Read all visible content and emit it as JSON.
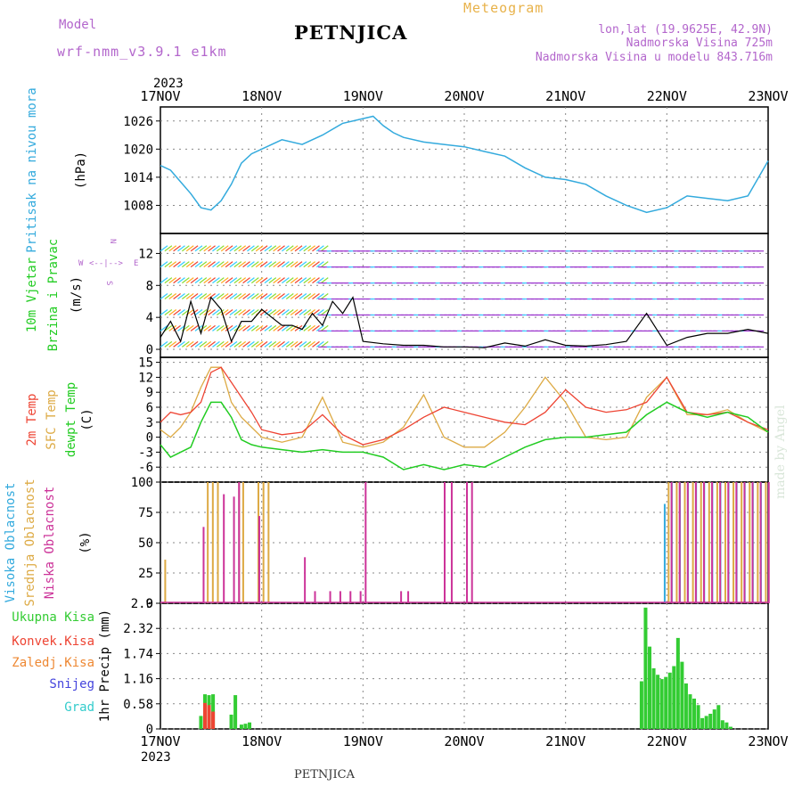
{
  "header": {
    "model_label": "Model",
    "model_name": "wrf-nmm_v3.9.1  e1km",
    "station": "PETNJICA",
    "title": "Meteogram",
    "coords": "lon,lat (19.9625E, 42.9N)",
    "elevation": "Nadmorska Visina 725m",
    "model_elevation": "Nadmorska Visina u modelu 843.716m",
    "year_top": "2023",
    "year_bottom": "2023",
    "footer_station": "PETNJICA",
    "watermark": "made by Angel"
  },
  "colors": {
    "pressure": "#33aadd",
    "temp2m": "#ee4433",
    "sfc": "#ddaa44",
    "dewpt": "#22cc22",
    "cloud_high": "#33aadd",
    "cloud_mid": "#ddaa44",
    "cloud_low": "#cc3399",
    "precip_total": "#33cc33",
    "precip_conv": "#ee4433",
    "precip_strat": "#ee8833",
    "snow": "#4444dd",
    "hail": "#33cccc",
    "wind_speed": "#000000",
    "gust": "#ff3333",
    "axis_purple": "#b366cc"
  },
  "chart_data": [
    {
      "type": "line",
      "id": "pressure",
      "ylabel_lines": [
        "Pritisak na nivou mora"
      ],
      "unit": "(hPa)",
      "x_categories": [
        "17NOV",
        "18NOV",
        "19NOV",
        "20NOV",
        "21NOV",
        "22NOV",
        "23NOV"
      ],
      "ylim": [
        1002,
        1029
      ],
      "yticks": [
        1008,
        1014,
        1020,
        1026
      ],
      "grid": true,
      "series": [
        {
          "x": [
            0,
            0.1,
            0.2,
            0.3,
            0.4,
            0.5,
            0.6,
            0.7,
            0.8,
            0.9,
            1.0,
            1.2,
            1.4,
            1.6,
            1.8,
            2.0,
            2.1,
            2.2,
            2.3,
            2.4,
            2.6,
            2.8,
            3.0,
            3.2,
            3.4,
            3.6,
            3.8,
            4.0,
            4.2,
            4.4,
            4.6,
            4.8,
            5.0,
            5.2,
            5.4,
            5.6,
            5.8,
            6.0
          ],
          "y": [
            1016.5,
            1015.5,
            1013,
            1010.5,
            1007.5,
            1007,
            1009,
            1012.5,
            1017,
            1019,
            1020,
            1022,
            1021,
            1023,
            1025.5,
            1026.5,
            1027,
            1025,
            1023.5,
            1022.5,
            1021.5,
            1021,
            1020.5,
            1019.5,
            1018.5,
            1016,
            1014,
            1013.5,
            1012.5,
            1010,
            1008,
            1006.5,
            1007.5,
            1010,
            1009.5,
            1009,
            1010,
            1017.5
          ]
        }
      ]
    },
    {
      "type": "line",
      "id": "wind",
      "ylabel_lines": [
        "10m Vjetar",
        "Brzina i Pravac"
      ],
      "unit": "(m/s)",
      "ylim": [
        -1,
        14.5
      ],
      "yticks": [
        0,
        4,
        8,
        12
      ],
      "compass": {
        "n": "N",
        "s": "S",
        "e": "E",
        "w": "W"
      },
      "grid": true,
      "series": [
        {
          "name": "speed",
          "x": [
            0,
            0.1,
            0.2,
            0.3,
            0.4,
            0.5,
            0.6,
            0.7,
            0.8,
            0.9,
            1.0,
            1.1,
            1.2,
            1.3,
            1.4,
            1.5,
            1.6,
            1.7,
            1.8,
            1.9,
            2.0,
            2.2,
            2.4,
            2.6,
            2.8,
            3.0,
            3.2,
            3.4,
            3.6,
            3.8,
            4.0,
            4.2,
            4.4,
            4.6,
            4.8,
            5.0,
            5.2,
            5.4,
            5.6,
            5.8,
            6.0
          ],
          "y": [
            1.5,
            3.5,
            1,
            6,
            2,
            6.5,
            5,
            1,
            3.5,
            3.5,
            5,
            4,
            3,
            3,
            2.5,
            4.5,
            3,
            6,
            4.5,
            6.5,
            1,
            0.7,
            0.5,
            0.5,
            0.3,
            0.3,
            0.2,
            0.8,
            0.4,
            1.2,
            0.5,
            0.4,
            0.6,
            1,
            4.5,
            0.5,
            1.5,
            2,
            2,
            2.5,
            2
          ]
        }
      ]
    },
    {
      "type": "line",
      "id": "temperature",
      "ylabel_lines": [
        "2m Temp",
        "SFC Temp",
        "dewpt Temp"
      ],
      "unit": "(C)",
      "ylim": [
        -9,
        16
      ],
      "yticks": [
        -6,
        -3,
        0,
        3,
        6,
        9,
        12,
        15
      ],
      "grid": true,
      "series": [
        {
          "name": "2m Temp",
          "x": [
            0,
            0.1,
            0.2,
            0.3,
            0.4,
            0.5,
            0.6,
            0.7,
            0.8,
            0.9,
            1.0,
            1.2,
            1.4,
            1.6,
            1.8,
            2.0,
            2.2,
            2.4,
            2.6,
            2.8,
            3.0,
            3.2,
            3.4,
            3.6,
            3.8,
            4.0,
            4.2,
            4.4,
            4.6,
            4.8,
            5.0,
            5.2,
            5.4,
            5.6,
            5.8,
            6.0
          ],
          "y": [
            3,
            5,
            4.5,
            5,
            7,
            13,
            14,
            11,
            8,
            5,
            1.5,
            0.5,
            1,
            4.5,
            0.5,
            -1.5,
            -0.5,
            1.5,
            4,
            6,
            5,
            4,
            3,
            2.5,
            5,
            9.5,
            6,
            5,
            5.5,
            7,
            12,
            5,
            4.5,
            5,
            3,
            1.5
          ]
        },
        {
          "name": "SFC Temp",
          "x": [
            0,
            0.1,
            0.2,
            0.3,
            0.4,
            0.5,
            0.6,
            0.7,
            0.8,
            0.9,
            1.0,
            1.2,
            1.4,
            1.6,
            1.8,
            2.0,
            2.2,
            2.4,
            2.6,
            2.8,
            3.0,
            3.2,
            3.4,
            3.6,
            3.8,
            4.0,
            4.2,
            4.4,
            4.6,
            4.8,
            5.0,
            5.2,
            5.4,
            5.6,
            5.8,
            6.0
          ],
          "y": [
            1.5,
            0,
            2,
            5,
            10,
            14,
            14,
            7,
            4,
            2,
            0,
            -1,
            0,
            8,
            -1,
            -2,
            -1,
            2,
            8.5,
            0,
            -2,
            -2,
            1,
            6,
            12,
            7,
            0,
            -0.5,
            0,
            8,
            12,
            4.5,
            4.5,
            5.5,
            3,
            1
          ]
        },
        {
          "name": "dewpt Temp",
          "x": [
            0,
            0.1,
            0.2,
            0.3,
            0.4,
            0.5,
            0.6,
            0.7,
            0.8,
            0.9,
            1.0,
            1.2,
            1.4,
            1.6,
            1.8,
            2.0,
            2.2,
            2.4,
            2.6,
            2.8,
            3.0,
            3.2,
            3.4,
            3.6,
            3.8,
            4.0,
            4.2,
            4.4,
            4.6,
            4.8,
            5.0,
            5.2,
            5.4,
            5.6,
            5.8,
            6.0
          ],
          "y": [
            -1.5,
            -4,
            -3,
            -2,
            3,
            7,
            7,
            4,
            -0.5,
            -1.5,
            -2,
            -2.5,
            -3,
            -2.5,
            -3,
            -3,
            -4,
            -6.5,
            -5.5,
            -6.5,
            -5.5,
            -6,
            -4,
            -2,
            -0.5,
            0,
            0,
            0.5,
            1,
            4.5,
            7,
            5,
            4,
            5,
            4,
            1
          ]
        }
      ]
    },
    {
      "type": "bar",
      "id": "clouds",
      "ylabel_lines": [
        "Visoka Oblacnost",
        "Srednja Oblacnost",
        "Niska Oblacnost"
      ],
      "unit": "(%)",
      "ylim": [
        0,
        100
      ],
      "yticks": [
        0,
        25,
        50,
        75,
        100
      ],
      "grid": true,
      "series": [
        {
          "name": "Visoka Oblacnost",
          "x": [
            4.97,
            5.04,
            5.12,
            5.2,
            5.28,
            5.36,
            5.44,
            5.52,
            5.6,
            5.68,
            5.76,
            5.84,
            5.92
          ],
          "values": [
            82,
            100,
            100,
            100,
            100,
            100,
            100,
            100,
            100,
            100,
            100,
            100,
            100
          ]
        },
        {
          "name": "Srednja Oblacnost",
          "x": [
            0.03,
            0.45,
            0.5,
            0.55,
            0.76,
            0.8,
            0.95,
            1.0,
            1.05,
            5.0,
            5.08,
            5.16,
            5.24,
            5.32,
            5.4,
            5.48,
            5.56,
            5.64,
            5.72,
            5.8,
            5.88,
            5.96
          ],
          "values": [
            36,
            100,
            100,
            100,
            100,
            100,
            100,
            100,
            100,
            100,
            100,
            100,
            100,
            100,
            100,
            100,
            100,
            100,
            100,
            100,
            100,
            100
          ]
        },
        {
          "name": "Niska Oblacnost",
          "x": [
            0.4,
            0.6,
            0.7,
            0.75,
            0.95,
            1.4,
            1.5,
            1.65,
            1.75,
            1.85,
            1.95,
            2.0,
            2.35,
            2.42,
            2.78,
            2.85,
            3.0,
            3.05,
            5.02,
            5.1,
            5.18,
            5.26,
            5.34,
            5.42,
            5.5,
            5.58,
            5.66,
            5.74,
            5.82,
            5.9,
            5.98
          ],
          "values": [
            63,
            90,
            88,
            100,
            72,
            38,
            10,
            10,
            10,
            10,
            10,
            100,
            10,
            10,
            100,
            100,
            100,
            100,
            100,
            100,
            100,
            100,
            100,
            100,
            100,
            100,
            100,
            100,
            100,
            100,
            100
          ]
        }
      ]
    },
    {
      "type": "bar",
      "id": "precip",
      "ylabel": "1hr Precip (mm)",
      "legend": [
        "Ukupna Kisa",
        "Konvek.Kisa",
        "Zaledj.Kisa",
        "Snijeg",
        "Grad"
      ],
      "ylim": [
        0,
        2.9
      ],
      "yticks": [
        "0",
        "0.58",
        "1.16",
        "1.74",
        "2.32",
        "2.9"
      ],
      "ytick_values": [
        0,
        0.58,
        1.16,
        1.74,
        2.32,
        2.9
      ],
      "grid": true,
      "series": [
        {
          "name": "Ukupna Kisa",
          "x": [
            0.4,
            0.44,
            0.48,
            0.52,
            0.7,
            0.74,
            0.8,
            0.84,
            0.88,
            4.75,
            4.79,
            4.83,
            4.87,
            4.91,
            4.95,
            4.99,
            5.03,
            5.07,
            5.11,
            5.15,
            5.19,
            5.23,
            5.27,
            5.31,
            5.35,
            5.39,
            5.43,
            5.47,
            5.51,
            5.55,
            5.59,
            5.63
          ],
          "values": [
            0.3,
            0.8,
            0.78,
            0.8,
            0.33,
            0.78,
            0.1,
            0.12,
            0.15,
            1.1,
            2.8,
            1.9,
            1.4,
            1.25,
            1.15,
            1.2,
            1.3,
            1.45,
            2.1,
            1.55,
            1.05,
            0.8,
            0.7,
            0.55,
            0.25,
            0.3,
            0.35,
            0.45,
            0.55,
            0.2,
            0.15,
            0.05
          ]
        },
        {
          "name": "Konvek.Kisa",
          "x": [
            0.44,
            0.48,
            0.52
          ],
          "values": [
            0.6,
            0.55,
            0.4
          ]
        }
      ]
    }
  ]
}
